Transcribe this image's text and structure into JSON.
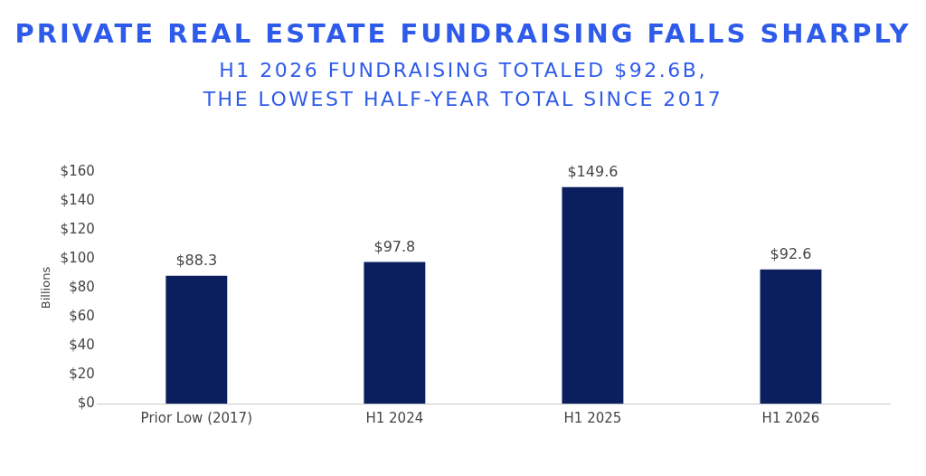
{
  "chart_data": {
    "type": "bar",
    "title": "PRIVATE REAL ESTATE FUNDRAISING FALLS SHARPLY",
    "subtitle": "H1 2026 FUNDRAISING TOTALED $92.6B, THE LOWEST HALF-YEAR TOTAL SINCE 2017",
    "ylabel": "Billions",
    "categories": [
      "Prior Low (2017)",
      "H1 2024",
      "H1 2025",
      "H1 2026"
    ],
    "values": [
      88.3,
      97.8,
      149.6,
      92.6
    ],
    "value_labels": [
      "$88.3",
      "$97.8",
      "$149.6",
      "$92.6"
    ],
    "color": "#0b1f5e",
    "ylim": [
      0,
      160
    ],
    "yticks": [
      {
        "value": 0,
        "label": "$0"
      },
      {
        "value": 20,
        "label": "$20"
      },
      {
        "value": 40,
        "label": "$40"
      },
      {
        "value": 60,
        "label": "$60"
      },
      {
        "value": 80,
        "label": "$80"
      },
      {
        "value": 100,
        "label": "$100"
      },
      {
        "value": 120,
        "label": "$120"
      },
      {
        "value": 140,
        "label": "$140"
      },
      {
        "value": 160,
        "label": "$160"
      }
    ],
    "grid": false,
    "legend": false
  }
}
